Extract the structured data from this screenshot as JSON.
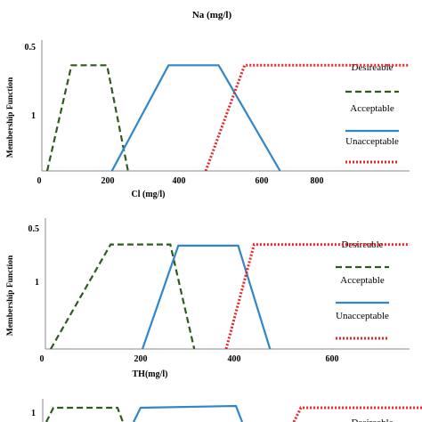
{
  "colors": {
    "desireable": "#2d5a1e",
    "acceptable": "#2f86c8",
    "unacceptable": "#e8232a",
    "axis": "#8a8a8a"
  },
  "top_strip": {
    "xlabel": "Na (mg/l)"
  },
  "legend_labels": [
    "Desireable",
    "Acceptable",
    "Unacceptable"
  ],
  "chart_data": [
    {
      "type": "line",
      "title": "",
      "xlabel": "Cl (mg/l)",
      "ylabel": "Membership Function",
      "xlim": [
        0,
        1120
      ],
      "ylim": [
        0,
        1
      ],
      "x_ticks": [
        "0",
        "200",
        "400",
        "600",
        "800"
      ],
      "y_ticks": [
        "0.5",
        "1"
      ],
      "grid": false,
      "legend_position": "right",
      "series": [
        {
          "name": "Desireable",
          "style": "dashed",
          "x": [
            0,
            75,
            185,
            250
          ],
          "y": [
            0,
            0.92,
            0.92,
            0
          ]
        },
        {
          "name": "Acceptable",
          "style": "solid",
          "x": [
            200,
            375,
            530,
            720
          ],
          "y": [
            0,
            0.92,
            0.92,
            0
          ]
        },
        {
          "name": "Unacceptable",
          "style": "dotted",
          "x": [
            490,
            610,
            1120
          ],
          "y": [
            0,
            0.92,
            0.92
          ]
        }
      ]
    },
    {
      "type": "line",
      "title": "",
      "xlabel": "TH(mg/l)",
      "ylabel": "Membership Function",
      "xlim": [
        0,
        900
      ],
      "ylim": [
        0,
        1
      ],
      "x_ticks": [
        "0",
        "200",
        "400",
        "600"
      ],
      "y_ticks": [
        "0.5",
        "1"
      ],
      "grid": false,
      "legend_position": "right",
      "series": [
        {
          "name": "Desireable",
          "style": "dashed",
          "x": [
            0,
            150,
            300,
            360
          ],
          "y": [
            0,
            0.91,
            0.91,
            0
          ]
        },
        {
          "name": "Acceptable",
          "style": "solid",
          "x": [
            230,
            320,
            470,
            550
          ],
          "y": [
            0,
            0.9,
            0.9,
            0
          ]
        },
        {
          "name": "Unacceptable",
          "style": "dotted",
          "x": [
            440,
            510,
            900
          ],
          "y": [
            0,
            0.91,
            0.91
          ]
        }
      ]
    },
    {
      "type": "line",
      "title": "",
      "xlabel": "",
      "ylabel": "",
      "y_ticks": [
        "1"
      ],
      "legend_labels": [
        "Desireable"
      ]
    }
  ]
}
